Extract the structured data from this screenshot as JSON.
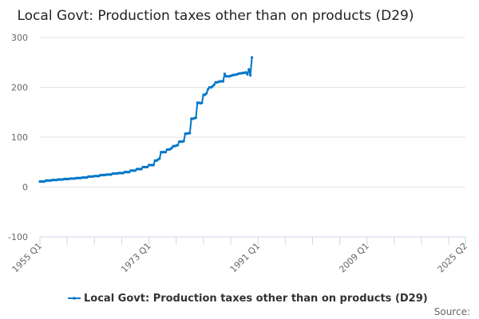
{
  "chart_data": {
    "type": "line",
    "title": "Local Govt: Production taxes other than on products (D29)",
    "xlabel": "",
    "ylabel": "",
    "ylim": [
      -100,
      300
    ],
    "yticks": [
      300,
      200,
      100,
      0,
      -100
    ],
    "x_start": "1955 Q1",
    "frequency": "quarterly",
    "x_axis_end": "2025 Q2",
    "xtick_labels": [
      "1955 Q1",
      "1973 Q1",
      "1991 Q1",
      "2009 Q1",
      "2025 Q2"
    ],
    "grid": true,
    "legend_position": "bottom",
    "series": [
      {
        "name": "Local Govt: Production taxes other than on products (D29)",
        "color": "#0077c8",
        "values": [
          11,
          11,
          11,
          11,
          13,
          13,
          13,
          13,
          14,
          14,
          14,
          14,
          15,
          15,
          15,
          15,
          16,
          16,
          16,
          16,
          17,
          17,
          17,
          17,
          18,
          18,
          18,
          18,
          19,
          19,
          19,
          19,
          21,
          21,
          21,
          21,
          22,
          22,
          22,
          22,
          24,
          24,
          24,
          24,
          25,
          25,
          25,
          25,
          27,
          27,
          27,
          27,
          28,
          28,
          28,
          28,
          30,
          30,
          30,
          30,
          33,
          33,
          33,
          33,
          36,
          36,
          36,
          36,
          40,
          40,
          40,
          40,
          44,
          44,
          44,
          44,
          53,
          53,
          55,
          57,
          70,
          70,
          70,
          70,
          75,
          75,
          76,
          78,
          82,
          82,
          83,
          84,
          91,
          91,
          91,
          92,
          107,
          107,
          108,
          108,
          137,
          137,
          138,
          139,
          169,
          169,
          168,
          169,
          185,
          185,
          188,
          196,
          200,
          200,
          202,
          205,
          210,
          210,
          211,
          212,
          212,
          212,
          227,
          222,
          222,
          222,
          223,
          224,
          225,
          225,
          226,
          227,
          228,
          228,
          229,
          229,
          230,
          226,
          236,
          224,
          260
        ]
      }
    ],
    "source_label": "Source:"
  }
}
